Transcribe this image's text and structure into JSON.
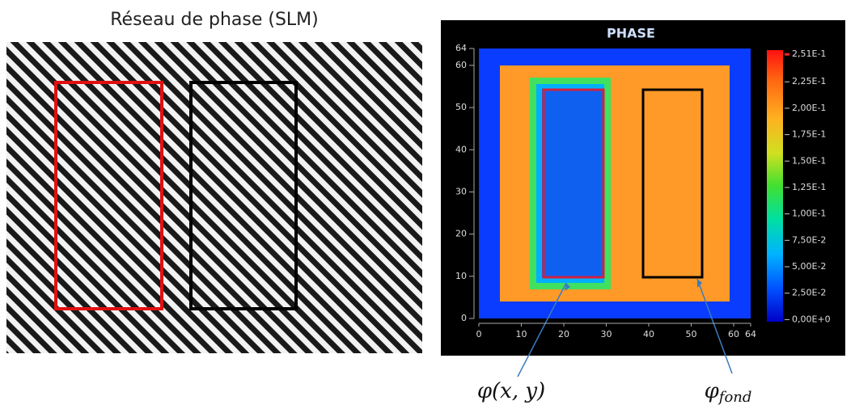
{
  "left_panel": {
    "title": "Réseau de phase (SLM)"
  },
  "chart_data": {
    "type": "heatmap",
    "title": "PHASE",
    "xlim": [
      0,
      64
    ],
    "xticks": [
      0,
      10,
      20,
      30,
      40,
      50,
      60,
      64
    ],
    "ylim": [
      0,
      64
    ],
    "yticks": [
      0,
      10,
      20,
      30,
      40,
      50,
      60,
      64
    ],
    "clim": [
      -0.002,
      0.255
    ],
    "cticks": [
      {
        "value": 0.251,
        "label": "2,51E-1"
      },
      {
        "value": 0.225,
        "label": "2,25E-1"
      },
      {
        "value": 0.2,
        "label": "2,00E-1"
      },
      {
        "value": 0.175,
        "label": "1,75E-1"
      },
      {
        "value": 0.15,
        "label": "1,50E-1"
      },
      {
        "value": 0.125,
        "label": "1,25E-1"
      },
      {
        "value": 0.1,
        "label": "1,00E-1"
      },
      {
        "value": 0.075,
        "label": "7,50E-2"
      },
      {
        "value": 0.05,
        "label": "5,00E-2"
      },
      {
        "value": 0.025,
        "label": "2,50E-2"
      },
      {
        "value": 0,
        "label": "0,00E+0"
      }
    ]
  },
  "annotations": {
    "phi_xy": "φ(x, y)",
    "phi_fond": {
      "base": "φ",
      "sub": "fond"
    }
  }
}
